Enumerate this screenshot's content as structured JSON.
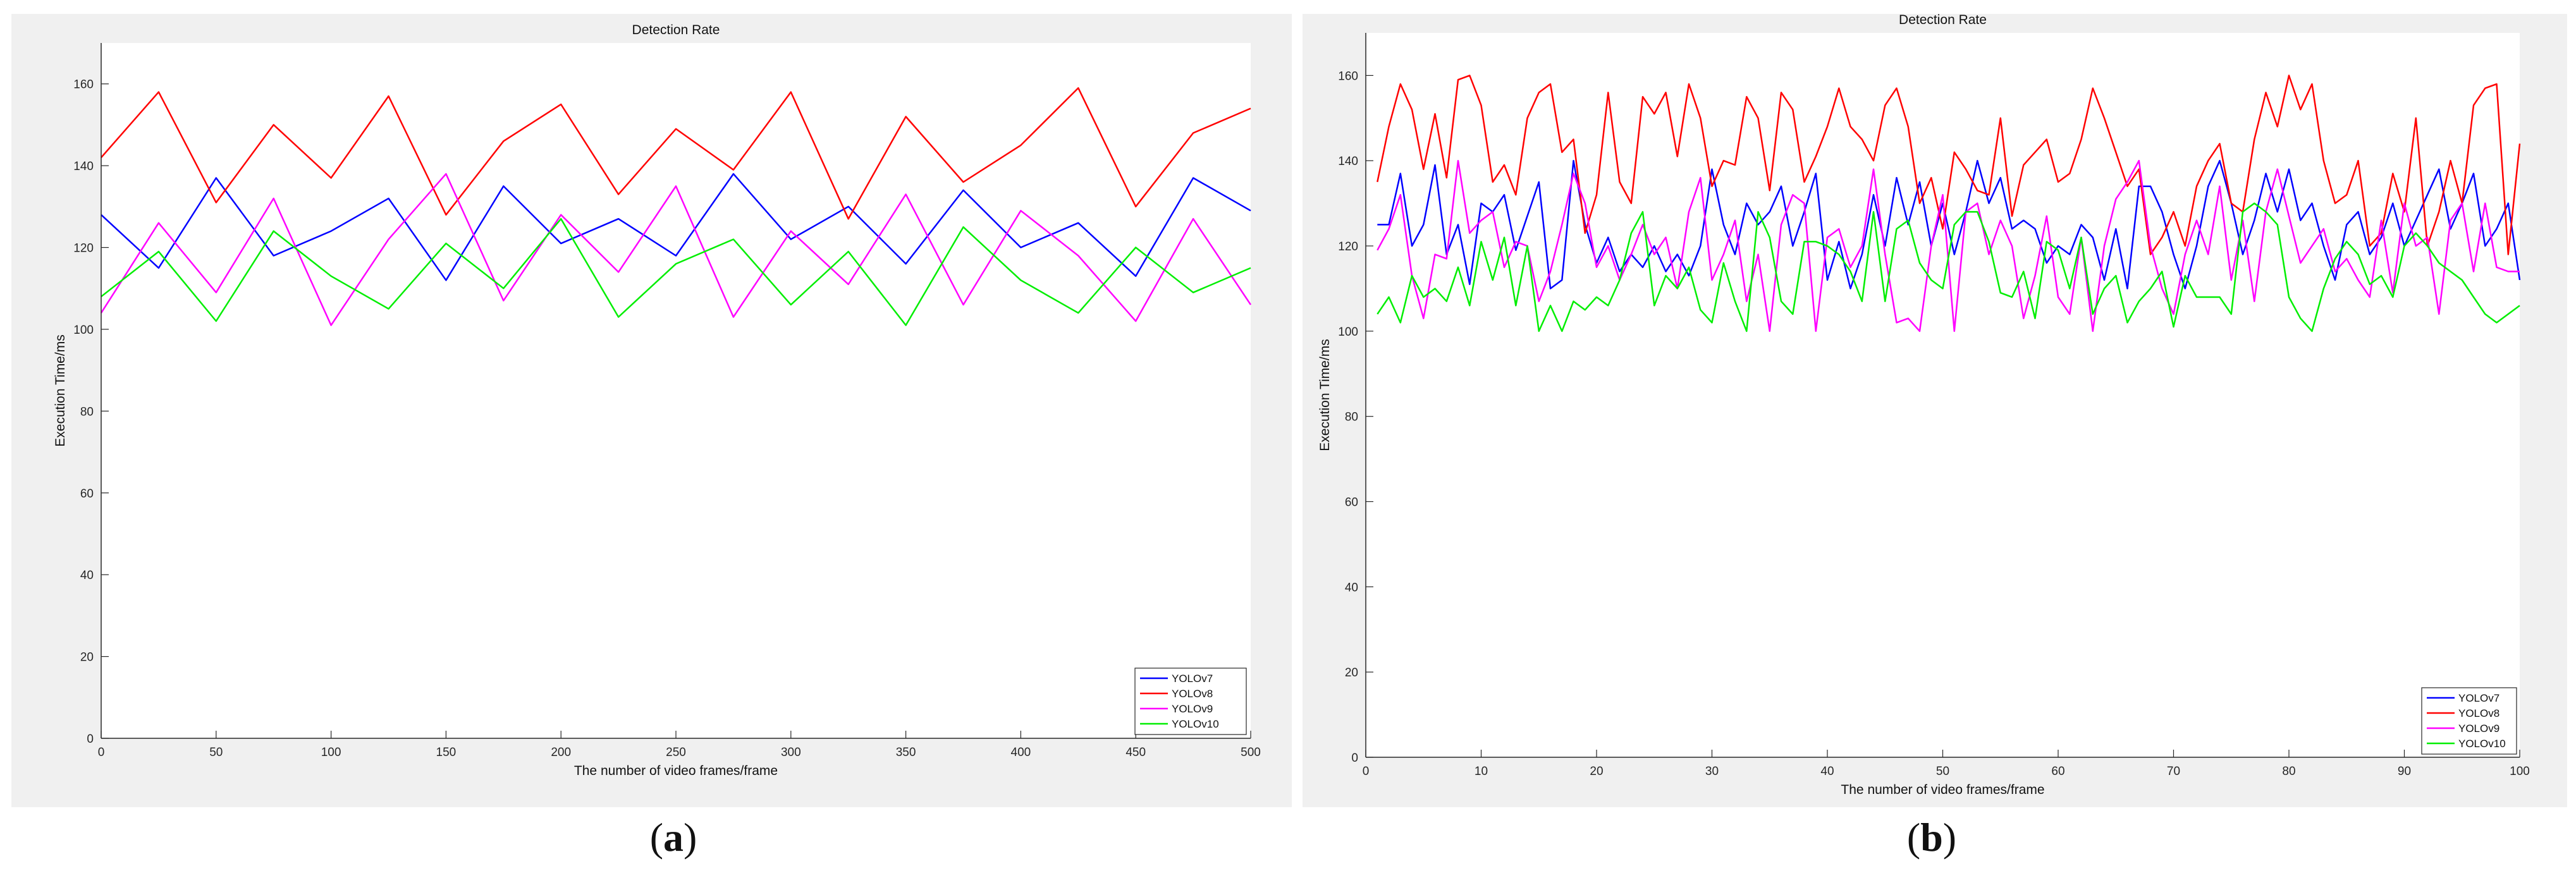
{
  "captions": {
    "a": "a",
    "b": "b"
  },
  "chart_data": [
    {
      "type": "line",
      "title": "Detection Rate",
      "xlabel": "The number of video frames/frame",
      "ylabel": "Execution Time/ms",
      "xlim": [
        0,
        500
      ],
      "ylim": [
        0,
        170
      ],
      "xticks": [
        0,
        50,
        100,
        150,
        200,
        250,
        300,
        350,
        400,
        450,
        500
      ],
      "yticks": [
        0,
        20,
        40,
        60,
        80,
        100,
        120,
        140,
        160
      ],
      "grid": false,
      "legend": "bottom-right",
      "series": [
        {
          "name": "YOLOv7",
          "color": "#0000ff",
          "x": [
            0,
            25,
            50,
            75,
            100,
            125,
            150,
            175,
            200,
            225,
            250,
            275,
            300,
            325,
            350,
            375,
            400,
            425,
            450,
            475,
            500
          ],
          "values": [
            128,
            115,
            137,
            118,
            124,
            132,
            112,
            135,
            121,
            127,
            118,
            138,
            122,
            130,
            116,
            134,
            120,
            126,
            113,
            137,
            129
          ]
        },
        {
          "name": "YOLOv8",
          "color": "#ff0000",
          "x": [
            0,
            25,
            50,
            75,
            100,
            125,
            150,
            175,
            200,
            225,
            250,
            275,
            300,
            325,
            350,
            375,
            400,
            425,
            450,
            475,
            500
          ],
          "values": [
            142,
            158,
            131,
            150,
            137,
            157,
            128,
            146,
            155,
            133,
            149,
            139,
            158,
            127,
            152,
            136,
            145,
            159,
            130,
            148,
            154
          ]
        },
        {
          "name": "YOLOv9",
          "color": "#ff00ff",
          "x": [
            0,
            25,
            50,
            75,
            100,
            125,
            150,
            175,
            200,
            225,
            250,
            275,
            300,
            325,
            350,
            375,
            400,
            425,
            450,
            475,
            500
          ],
          "values": [
            104,
            126,
            109,
            132,
            101,
            122,
            138,
            107,
            128,
            114,
            135,
            103,
            124,
            111,
            133,
            106,
            129,
            118,
            102,
            127,
            106
          ]
        },
        {
          "name": "YOLOv10",
          "color": "#00ee00",
          "x": [
            0,
            25,
            50,
            75,
            100,
            125,
            150,
            175,
            200,
            225,
            250,
            275,
            300,
            325,
            350,
            375,
            400,
            425,
            450,
            475,
            500
          ],
          "values": [
            108,
            119,
            102,
            124,
            113,
            105,
            121,
            110,
            127,
            103,
            116,
            122,
            106,
            119,
            101,
            125,
            112,
            104,
            120,
            109,
            115
          ]
        }
      ]
    },
    {
      "type": "line",
      "title": "Detection Rate",
      "xlabel": "The number of video frames/frame",
      "ylabel": "Execution Time/ms",
      "xlim": [
        0,
        100
      ],
      "ylim": [
        0,
        170
      ],
      "xticks": [
        0,
        10,
        20,
        30,
        40,
        50,
        60,
        70,
        80,
        90,
        100
      ],
      "yticks": [
        0,
        20,
        40,
        60,
        80,
        100,
        120,
        140,
        160
      ],
      "grid": false,
      "legend": "bottom-right",
      "series": [
        {
          "name": "YOLOv7",
          "color": "#0000ff",
          "x": [
            1,
            2,
            3,
            4,
            5,
            6,
            7,
            8,
            9,
            10,
            11,
            12,
            13,
            14,
            15,
            16,
            17,
            18,
            19,
            20,
            21,
            22,
            23,
            24,
            25,
            26,
            27,
            28,
            29,
            30,
            31,
            32,
            33,
            34,
            35,
            36,
            37,
            38,
            39,
            40,
            41,
            42,
            43,
            44,
            45,
            46,
            47,
            48,
            49,
            50,
            51,
            52,
            53,
            54,
            55,
            56,
            57,
            58,
            59,
            60,
            61,
            62,
            63,
            64,
            65,
            66,
            67,
            68,
            69,
            70,
            71,
            72,
            73,
            74,
            75,
            76,
            77,
            78,
            79,
            80,
            81,
            82,
            83,
            84,
            85,
            86,
            87,
            88,
            89,
            90,
            91,
            92,
            93,
            94,
            95,
            96,
            97,
            98,
            99,
            100
          ],
          "values": [
            125,
            125,
            137,
            120,
            125,
            139,
            118,
            125,
            111,
            130,
            128,
            132,
            119,
            127,
            135,
            110,
            112,
            140,
            125,
            116,
            122,
            114,
            118,
            115,
            120,
            114,
            118,
            113,
            120,
            138,
            125,
            118,
            130,
            125,
            128,
            134,
            120,
            128,
            137,
            112,
            121,
            110,
            118,
            132,
            120,
            136,
            125,
            135,
            120,
            130,
            118,
            128,
            140,
            130,
            136,
            124,
            126,
            124,
            116,
            120,
            118,
            125,
            122,
            112,
            124,
            110,
            134,
            134,
            128,
            118,
            110,
            120,
            134,
            140,
            130,
            118,
            126,
            137,
            128,
            138,
            126,
            130,
            120,
            112,
            125,
            128,
            118,
            122,
            130,
            120,
            126,
            132,
            138,
            124,
            130,
            137,
            120,
            124,
            130,
            112
          ]
        },
        {
          "name": "YOLOv8",
          "color": "#ff0000",
          "x": [
            1,
            2,
            3,
            4,
            5,
            6,
            7,
            8,
            9,
            10,
            11,
            12,
            13,
            14,
            15,
            16,
            17,
            18,
            19,
            20,
            21,
            22,
            23,
            24,
            25,
            26,
            27,
            28,
            29,
            30,
            31,
            32,
            33,
            34,
            35,
            36,
            37,
            38,
            39,
            40,
            41,
            42,
            43,
            44,
            45,
            46,
            47,
            48,
            49,
            50,
            51,
            52,
            53,
            54,
            55,
            56,
            57,
            58,
            59,
            60,
            61,
            62,
            63,
            64,
            65,
            66,
            67,
            68,
            69,
            70,
            71,
            72,
            73,
            74,
            75,
            76,
            77,
            78,
            79,
            80,
            81,
            82,
            83,
            84,
            85,
            86,
            87,
            88,
            89,
            90,
            91,
            92,
            93,
            94,
            95,
            96,
            97,
            98,
            99,
            100
          ],
          "values": [
            135,
            148,
            158,
            152,
            138,
            151,
            136,
            159,
            160,
            153,
            135,
            139,
            132,
            150,
            156,
            158,
            142,
            145,
            123,
            132,
            156,
            135,
            130,
            155,
            151,
            156,
            141,
            158,
            150,
            134,
            140,
            139,
            155,
            150,
            133,
            156,
            152,
            135,
            141,
            148,
            157,
            148,
            145,
            140,
            153,
            157,
            148,
            130,
            136,
            124,
            142,
            138,
            133,
            132,
            150,
            127,
            139,
            142,
            145,
            135,
            137,
            145,
            157,
            150,
            142,
            134,
            138,
            118,
            122,
            128,
            120,
            134,
            140,
            144,
            130,
            128,
            145,
            156,
            148,
            160,
            152,
            158,
            140,
            130,
            132,
            140,
            120,
            123,
            137,
            128,
            150,
            120,
            128,
            140,
            130,
            153,
            157,
            158,
            118,
            144
          ]
        },
        {
          "name": "YOLOv9",
          "color": "#ff00ff",
          "x": [
            1,
            2,
            3,
            4,
            5,
            6,
            7,
            8,
            9,
            10,
            11,
            12,
            13,
            14,
            15,
            16,
            17,
            18,
            19,
            20,
            21,
            22,
            23,
            24,
            25,
            26,
            27,
            28,
            29,
            30,
            31,
            32,
            33,
            34,
            35,
            36,
            37,
            38,
            39,
            40,
            41,
            42,
            43,
            44,
            45,
            46,
            47,
            48,
            49,
            50,
            51,
            52,
            53,
            54,
            55,
            56,
            57,
            58,
            59,
            60,
            61,
            62,
            63,
            64,
            65,
            66,
            67,
            68,
            69,
            70,
            71,
            72,
            73,
            74,
            75,
            76,
            77,
            78,
            79,
            80,
            81,
            82,
            83,
            84,
            85,
            86,
            87,
            88,
            89,
            90,
            91,
            92,
            93,
            94,
            95,
            96,
            97,
            98,
            99,
            100
          ],
          "values": [
            119,
            124,
            132,
            113,
            103,
            118,
            117,
            140,
            123,
            126,
            128,
            115,
            121,
            120,
            107,
            114,
            125,
            137,
            130,
            115,
            120,
            112,
            118,
            125,
            118,
            122,
            110,
            128,
            136,
            112,
            118,
            126,
            107,
            118,
            100,
            125,
            132,
            130,
            100,
            122,
            124,
            115,
            120,
            138,
            118,
            102,
            103,
            100,
            120,
            132,
            100,
            128,
            130,
            118,
            126,
            120,
            103,
            113,
            127,
            108,
            104,
            122,
            100,
            120,
            131,
            135,
            140,
            120,
            110,
            104,
            118,
            126,
            118,
            134,
            112,
            126,
            107,
            128,
            138,
            127,
            116,
            120,
            124,
            114,
            117,
            112,
            108,
            126,
            109,
            130,
            120,
            122,
            104,
            126,
            130,
            114,
            130,
            115,
            114,
            114
          ]
        },
        {
          "name": "YOLOv10",
          "color": "#00ee00",
          "x": [
            1,
            2,
            3,
            4,
            5,
            6,
            7,
            8,
            9,
            10,
            11,
            12,
            13,
            14,
            15,
            16,
            17,
            18,
            19,
            20,
            21,
            22,
            23,
            24,
            25,
            26,
            27,
            28,
            29,
            30,
            31,
            32,
            33,
            34,
            35,
            36,
            37,
            38,
            39,
            40,
            41,
            42,
            43,
            44,
            45,
            46,
            47,
            48,
            49,
            50,
            51,
            52,
            53,
            54,
            55,
            56,
            57,
            58,
            59,
            60,
            61,
            62,
            63,
            64,
            65,
            66,
            67,
            68,
            69,
            70,
            71,
            72,
            73,
            74,
            75,
            76,
            77,
            78,
            79,
            80,
            81,
            82,
            83,
            84,
            85,
            86,
            87,
            88,
            89,
            90,
            91,
            92,
            93,
            94,
            95,
            96,
            97,
            98,
            99,
            100
          ],
          "values": [
            104,
            108,
            102,
            113,
            108,
            110,
            107,
            115,
            106,
            121,
            112,
            122,
            106,
            120,
            100,
            106,
            100,
            107,
            105,
            108,
            106,
            112,
            123,
            128,
            106,
            113,
            110,
            115,
            105,
            102,
            116,
            107,
            100,
            128,
            122,
            107,
            104,
            121,
            121,
            120,
            118,
            114,
            107,
            128,
            107,
            124,
            126,
            116,
            112,
            110,
            125,
            128,
            128,
            121,
            109,
            108,
            114,
            103,
            121,
            119,
            110,
            122,
            104,
            110,
            113,
            102,
            107,
            110,
            114,
            101,
            113,
            108,
            108,
            108,
            104,
            128,
            130,
            128,
            125,
            108,
            103,
            100,
            110,
            117,
            121,
            118,
            111,
            113,
            108,
            120,
            123,
            120,
            116,
            114,
            112,
            108,
            104,
            102,
            104,
            106
          ]
        }
      ]
    }
  ]
}
